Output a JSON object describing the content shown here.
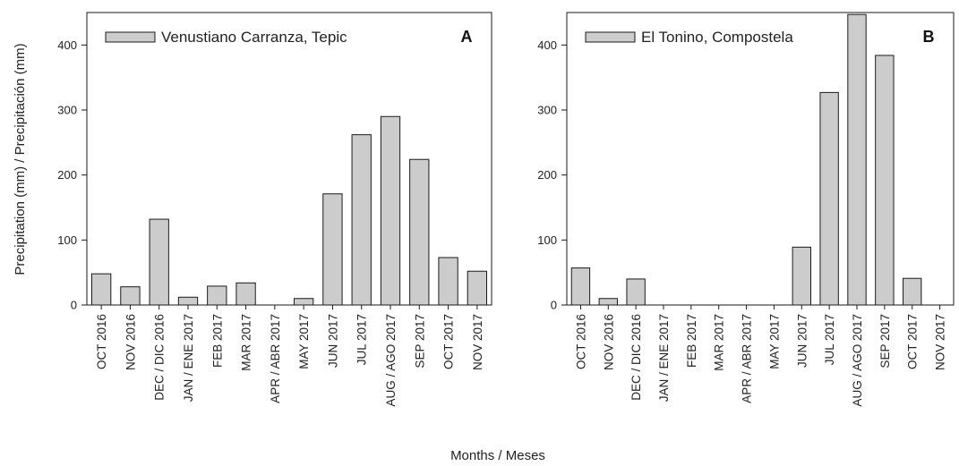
{
  "figure": {
    "ylabel": "Precipitation (mm) / Precipitación (mm)",
    "xlabel": "Months / Meses",
    "bar_fill": "#cccccc",
    "bar_stroke": "#1a1a1a"
  },
  "chart_data": [
    {
      "type": "bar",
      "panel": "A",
      "legend": "Venustiano Carranza, Tepic",
      "categories": [
        "OCT 2016",
        "NOV 2016",
        "DEC / DIC 2016",
        "JAN / ENE 2017",
        "FEB 2017",
        "MAR 2017",
        "APR / ABR 2017",
        "MAY 2017",
        "JUN 2017",
        "JUL 2017",
        "AUG / AGO 2017",
        "SEP 2017",
        "OCT 2017",
        "NOV 2017"
      ],
      "values": [
        48,
        28,
        132,
        12,
        29,
        34,
        0,
        10,
        171,
        262,
        290,
        224,
        73,
        52
      ],
      "ylim": [
        0,
        450
      ],
      "yticks": [
        0,
        100,
        200,
        300,
        400
      ],
      "legend_position": "top-left"
    },
    {
      "type": "bar",
      "panel": "B",
      "legend": "El Tonino, Compostela",
      "categories": [
        "OCT 2016",
        "NOV 2016",
        "DEC / DIC 2016",
        "JAN / ENE 2017",
        "FEB 2017",
        "MAR 2017",
        "APR / ABR 2017",
        "MAY 2017",
        "JUN 2017",
        "JUL 2017",
        "AUG / AGO 2017",
        "SEP 2017",
        "OCT 2017",
        "NOV 2017"
      ],
      "values": [
        57,
        10,
        40,
        0,
        0,
        0,
        0,
        0,
        89,
        327,
        447,
        384,
        41,
        0
      ],
      "ylim": [
        0,
        450
      ],
      "yticks": [
        0,
        100,
        200,
        300,
        400
      ],
      "legend_position": "top-left"
    }
  ]
}
